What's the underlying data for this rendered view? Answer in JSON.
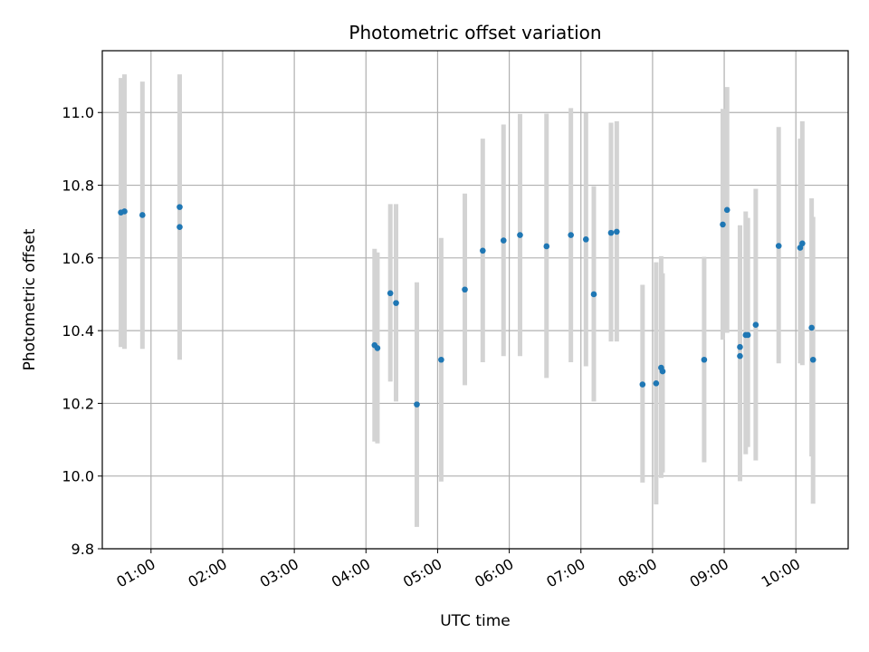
{
  "chart_data": {
    "type": "scatter",
    "title": "Photometric offset variation",
    "xlabel": "UTC time",
    "ylabel": "Photometric offset",
    "x_unit": "hours (UTC)",
    "xlim": [
      0.32,
      10.73
    ],
    "ylim": [
      9.8,
      11.17
    ],
    "grid": true,
    "legend": "none",
    "x_ticks": [
      {
        "value": 1,
        "label": "01:00"
      },
      {
        "value": 2,
        "label": "02:00"
      },
      {
        "value": 3,
        "label": "03:00"
      },
      {
        "value": 4,
        "label": "04:00"
      },
      {
        "value": 5,
        "label": "05:00"
      },
      {
        "value": 6,
        "label": "06:00"
      },
      {
        "value": 7,
        "label": "07:00"
      },
      {
        "value": 8,
        "label": "08:00"
      },
      {
        "value": 9,
        "label": "09:00"
      },
      {
        "value": 10,
        "label": "10:00"
      }
    ],
    "y_ticks": [
      {
        "value": 9.8,
        "label": "9.8"
      },
      {
        "value": 10.0,
        "label": "10.0"
      },
      {
        "value": 10.2,
        "label": "10.2"
      },
      {
        "value": 10.4,
        "label": "10.4"
      },
      {
        "value": 10.6,
        "label": "10.6"
      },
      {
        "value": 10.8,
        "label": "10.8"
      },
      {
        "value": 11.0,
        "label": "11.0"
      }
    ],
    "colors": {
      "point": "#1f77b4",
      "errorbar": "#d3d3d3",
      "grid": "#b0b0b0"
    },
    "series": [
      {
        "points": [
          {
            "x": 0.58,
            "y": 10.725,
            "lo": 10.355,
            "hi": 11.095
          },
          {
            "x": 0.63,
            "y": 10.728,
            "lo": 10.35,
            "hi": 11.105
          },
          {
            "x": 0.88,
            "y": 10.718,
            "lo": 10.35,
            "hi": 11.085
          },
          {
            "x": 1.4,
            "y": 10.74,
            "lo": 10.375,
            "hi": 11.105
          },
          {
            "x": 1.4,
            "y": 10.685,
            "lo": 10.32,
            "hi": 11.05
          },
          {
            "x": 4.12,
            "y": 10.36,
            "lo": 10.095,
            "hi": 10.625
          },
          {
            "x": 4.16,
            "y": 10.352,
            "lo": 10.09,
            "hi": 10.615
          },
          {
            "x": 4.34,
            "y": 10.503,
            "lo": 10.26,
            "hi": 10.748
          },
          {
            "x": 4.42,
            "y": 10.476,
            "lo": 10.205,
            "hi": 10.748
          },
          {
            "x": 4.71,
            "y": 10.197,
            "lo": 9.86,
            "hi": 10.533
          },
          {
            "x": 5.05,
            "y": 10.32,
            "lo": 9.985,
            "hi": 10.655
          },
          {
            "x": 5.38,
            "y": 10.513,
            "lo": 10.25,
            "hi": 10.777
          },
          {
            "x": 5.63,
            "y": 10.62,
            "lo": 10.313,
            "hi": 10.928
          },
          {
            "x": 5.92,
            "y": 10.648,
            "lo": 10.33,
            "hi": 10.967
          },
          {
            "x": 6.15,
            "y": 10.663,
            "lo": 10.33,
            "hi": 10.996
          },
          {
            "x": 6.52,
            "y": 10.632,
            "lo": 10.27,
            "hi": 10.997
          },
          {
            "x": 6.86,
            "y": 10.663,
            "lo": 10.313,
            "hi": 11.012
          },
          {
            "x": 7.07,
            "y": 10.651,
            "lo": 10.302,
            "hi": 10.998
          },
          {
            "x": 7.18,
            "y": 10.5,
            "lo": 10.205,
            "hi": 10.797
          },
          {
            "x": 7.42,
            "y": 10.669,
            "lo": 10.37,
            "hi": 10.972
          },
          {
            "x": 7.5,
            "y": 10.672,
            "lo": 10.37,
            "hi": 10.976
          },
          {
            "x": 7.86,
            "y": 10.252,
            "lo": 9.982,
            "hi": 10.526
          },
          {
            "x": 8.05,
            "y": 10.255,
            "lo": 9.922,
            "hi": 10.588
          },
          {
            "x": 8.12,
            "y": 10.298,
            "lo": 9.995,
            "hi": 10.605
          },
          {
            "x": 8.14,
            "y": 10.288,
            "lo": 10.01,
            "hi": 10.558
          },
          {
            "x": 8.72,
            "y": 10.32,
            "lo": 10.038,
            "hi": 10.603
          },
          {
            "x": 8.98,
            "y": 10.692,
            "lo": 10.375,
            "hi": 11.01
          },
          {
            "x": 9.04,
            "y": 10.732,
            "lo": 10.394,
            "hi": 11.07
          },
          {
            "x": 9.22,
            "y": 10.33,
            "lo": 9.986,
            "hi": 10.688
          },
          {
            "x": 9.22,
            "y": 10.355,
            "lo": 10.01,
            "hi": 10.69
          },
          {
            "x": 9.3,
            "y": 10.388,
            "lo": 10.06,
            "hi": 10.728
          },
          {
            "x": 9.33,
            "y": 10.388,
            "lo": 10.08,
            "hi": 10.71
          },
          {
            "x": 9.44,
            "y": 10.416,
            "lo": 10.043,
            "hi": 10.79
          },
          {
            "x": 9.76,
            "y": 10.633,
            "lo": 10.31,
            "hi": 10.96
          },
          {
            "x": 10.06,
            "y": 10.628,
            "lo": 10.31,
            "hi": 10.928
          },
          {
            "x": 10.09,
            "y": 10.64,
            "lo": 10.305,
            "hi": 10.976
          },
          {
            "x": 10.22,
            "y": 10.408,
            "lo": 10.054,
            "hi": 10.764
          },
          {
            "x": 10.24,
            "y": 10.32,
            "lo": 9.924,
            "hi": 10.713
          }
        ]
      }
    ]
  }
}
